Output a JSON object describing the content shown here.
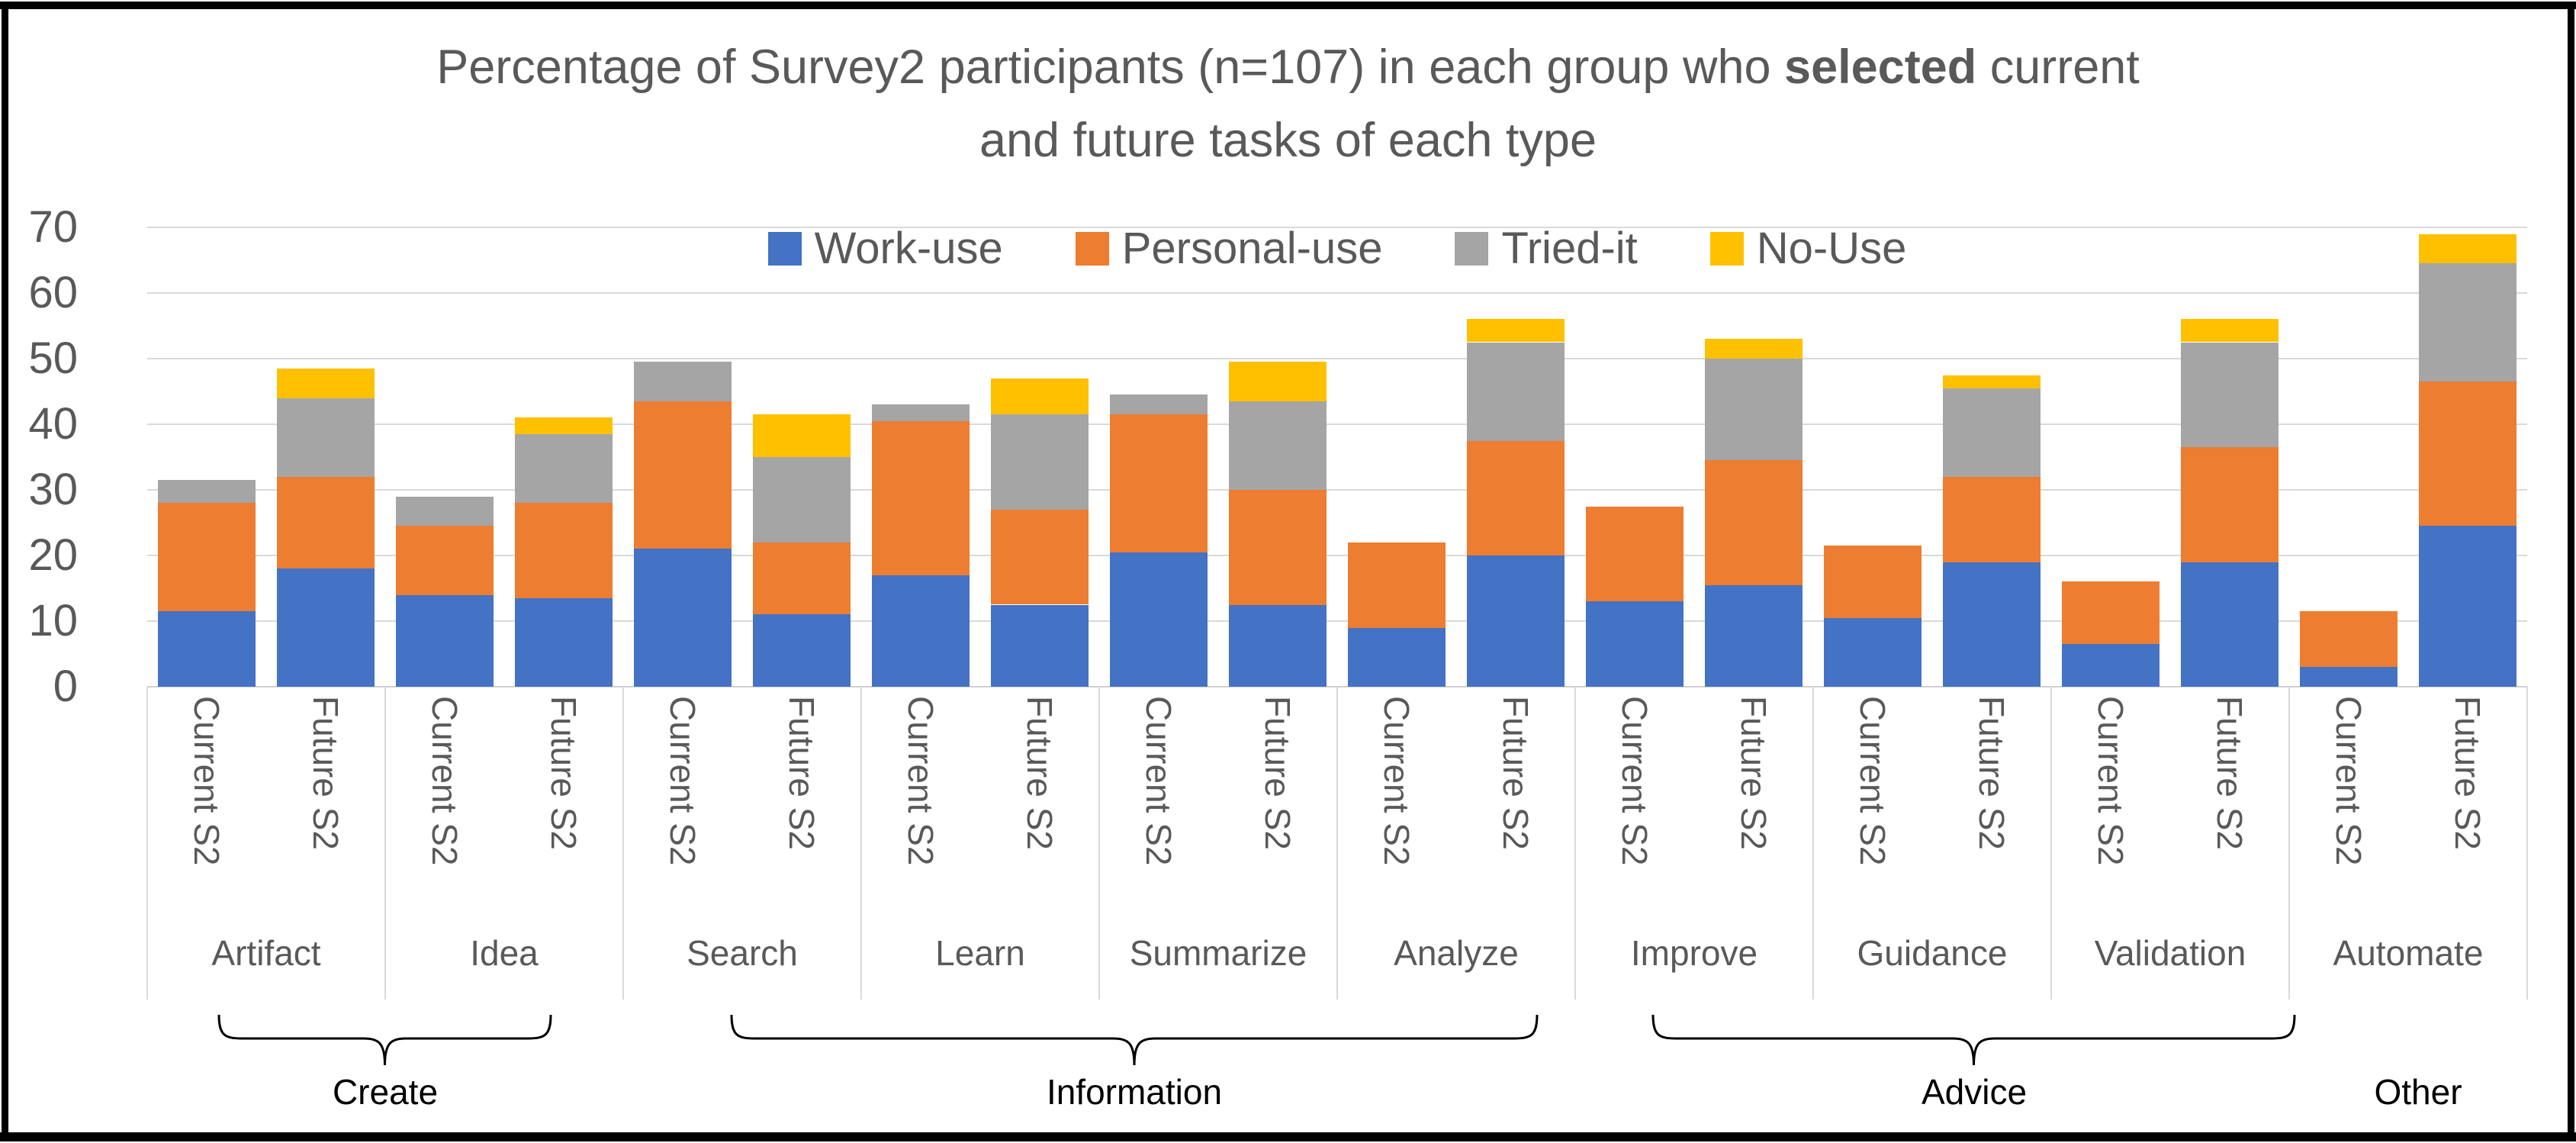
{
  "title": {
    "line1_pre": "Percentage of Survey2 participants (n=107) in each group who ",
    "line1_bold": "selected",
    "line1_post": " current",
    "line2": "and future tasks of each type",
    "full": "Percentage of Survey2 participants (n=107) in each group who selected current and future tasks of each type"
  },
  "legend": {
    "items": [
      {
        "label": "Work-use",
        "color": "#4472C4"
      },
      {
        "label": "Personal-use",
        "color": "#ED7D31"
      },
      {
        "label": "Tried-it",
        "color": "#A5A5A5"
      },
      {
        "label": "No-Use",
        "color": "#FFC000"
      }
    ]
  },
  "y_axis": {
    "ticks": [
      0,
      10,
      20,
      30,
      40,
      50,
      60,
      70
    ]
  },
  "chart_data": {
    "type": "bar",
    "stacked": true,
    "title": "Percentage of Survey2 participants (n=107) in each group who selected current and future tasks of each type",
    "ylabel": "",
    "xlabel": "",
    "ylim": [
      0,
      70
    ],
    "yticks": [
      0,
      10,
      20,
      30,
      40,
      50,
      60,
      70
    ],
    "grid": "horizontal",
    "legend_position": "top-center",
    "series_order": [
      "Work-use",
      "Personal-use",
      "Tried-it",
      "No-Use"
    ],
    "series_colors": {
      "Work-use": "#4472C4",
      "Personal-use": "#ED7D31",
      "Tried-it": "#A5A5A5",
      "No-Use": "#FFC000"
    },
    "bar_tick_labels": [
      "Current S2",
      "Future S2"
    ],
    "groups": [
      {
        "group": "Create",
        "has_brace": true,
        "categories": [
          {
            "name": "Artifact",
            "bars": [
              {
                "label": "Current S2",
                "values": [
                  11.5,
                  16.5,
                  3.5,
                  0
                ],
                "total": 31.5
              },
              {
                "label": "Future S2",
                "values": [
                  18,
                  14,
                  12,
                  4.5
                ],
                "total": 48.5
              }
            ]
          },
          {
            "name": "Idea",
            "bars": [
              {
                "label": "Current S2",
                "values": [
                  14,
                  10.5,
                  4.5,
                  0
                ],
                "total": 29
              },
              {
                "label": "Future S2",
                "values": [
                  13.5,
                  14.5,
                  10.5,
                  2.5
                ],
                "total": 41
              }
            ]
          }
        ]
      },
      {
        "group": "Information",
        "has_brace": true,
        "categories": [
          {
            "name": "Search",
            "bars": [
              {
                "label": "Current S2",
                "values": [
                  21,
                  22.5,
                  6,
                  0
                ],
                "total": 49.5
              },
              {
                "label": "Future S2",
                "values": [
                  11,
                  11,
                  13,
                  6.5
                ],
                "total": 41.5
              }
            ]
          },
          {
            "name": "Learn",
            "bars": [
              {
                "label": "Current S2",
                "values": [
                  17,
                  23.5,
                  2.5,
                  0
                ],
                "total": 43
              },
              {
                "label": "Future S2",
                "values": [
                  12.5,
                  14.5,
                  14.5,
                  5.5
                ],
                "total": 47
              }
            ]
          },
          {
            "name": "Summarize",
            "bars": [
              {
                "label": "Current S2",
                "values": [
                  20.5,
                  21,
                  3,
                  0
                ],
                "total": 44.5
              },
              {
                "label": "Future S2",
                "values": [
                  12.5,
                  17.5,
                  13.5,
                  6
                ],
                "total": 49.5
              }
            ]
          },
          {
            "name": "Analyze",
            "bars": [
              {
                "label": "Current S2",
                "values": [
                  9,
                  13,
                  0,
                  0
                ],
                "total": 22
              },
              {
                "label": "Future S2",
                "values": [
                  20,
                  17.5,
                  15,
                  3.5
                ],
                "total": 56
              }
            ]
          }
        ]
      },
      {
        "group": "Advice",
        "has_brace": true,
        "categories": [
          {
            "name": "Improve",
            "bars": [
              {
                "label": "Current S2",
                "values": [
                  13,
                  14.5,
                  0,
                  0
                ],
                "total": 27.5
              },
              {
                "label": "Future S2",
                "values": [
                  15.5,
                  19,
                  15.5,
                  3
                ],
                "total": 53
              }
            ]
          },
          {
            "name": "Guidance",
            "bars": [
              {
                "label": "Current S2",
                "values": [
                  10.5,
                  11,
                  0,
                  0
                ],
                "total": 21.5
              },
              {
                "label": "Future S2",
                "values": [
                  19,
                  13,
                  13.5,
                  2
                ],
                "total": 47.5
              }
            ]
          },
          {
            "name": "Validation",
            "bars": [
              {
                "label": "Current S2",
                "values": [
                  6.5,
                  9.5,
                  0,
                  0
                ],
                "total": 16
              },
              {
                "label": "Future S2",
                "values": [
                  19,
                  17.5,
                  16,
                  3.5
                ],
                "total": 56
              }
            ]
          }
        ]
      },
      {
        "group": "Other",
        "has_brace": false,
        "categories": [
          {
            "name": "Automate",
            "bars": [
              {
                "label": "Current S2",
                "values": [
                  3,
                  8.5,
                  0,
                  0
                ],
                "total": 11.5
              },
              {
                "label": "Future S2",
                "values": [
                  24.5,
                  22,
                  18,
                  4.5
                ],
                "total": 69
              }
            ]
          }
        ]
      }
    ]
  }
}
